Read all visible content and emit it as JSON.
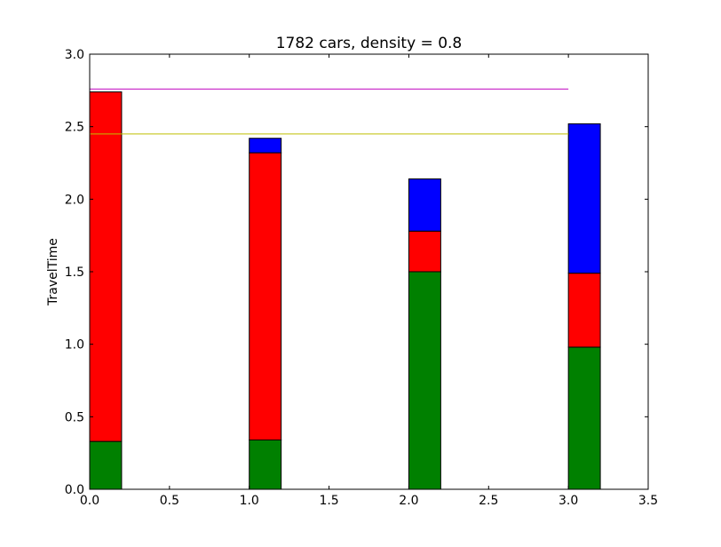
{
  "chart_data": {
    "type": "bar",
    "stacked": true,
    "title": "1782 cars, density = 0.8",
    "xlabel": "",
    "ylabel": "TravelTime",
    "xlim": [
      0.0,
      3.5
    ],
    "ylim": [
      0.0,
      3.0
    ],
    "x_ticks": [
      "0.0",
      "0.5",
      "1.0",
      "1.5",
      "2.0",
      "2.5",
      "3.0",
      "3.5"
    ],
    "y_ticks": [
      "0.0",
      "0.5",
      "1.0",
      "1.5",
      "2.0",
      "2.5",
      "3.0"
    ],
    "grid": false,
    "bar_width": 0.2,
    "x": [
      0,
      1,
      2,
      3
    ],
    "series": [
      {
        "color": "#008000",
        "values": [
          0.33,
          0.34,
          1.5,
          0.98
        ]
      },
      {
        "color": "#ff0000",
        "values": [
          2.41,
          1.98,
          0.28,
          0.51
        ]
      },
      {
        "color": "#0000ff",
        "values": [
          0.0,
          0.1,
          0.36,
          1.03
        ]
      }
    ],
    "reference_lines": [
      {
        "color": "#bf00bf",
        "y": 2.76,
        "x_start": 0.0,
        "x_end": 3.0
      },
      {
        "color": "#bfbf00",
        "y": 2.45,
        "x_start": 0.0,
        "x_end": 3.0
      }
    ]
  }
}
